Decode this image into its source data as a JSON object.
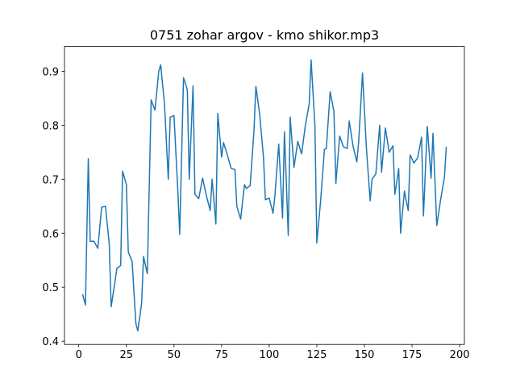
{
  "chart_data": {
    "type": "line",
    "title": "0751 zohar argov - kmo shikor.mp3",
    "x": [
      2,
      3.5,
      5,
      6,
      8,
      10,
      12,
      14,
      16,
      17,
      19,
      20,
      22,
      23,
      25,
      26,
      28,
      30,
      31,
      33,
      34,
      36,
      38,
      40,
      42,
      43,
      45,
      47,
      48,
      50,
      52,
      53,
      55,
      57,
      58,
      60,
      61,
      63,
      65,
      67,
      69,
      70,
      72,
      73,
      75,
      76,
      78,
      80,
      82,
      83,
      85,
      87,
      88,
      90,
      92,
      93,
      95,
      97,
      98,
      100,
      102,
      103,
      105,
      107,
      108,
      110,
      111,
      113,
      115,
      117,
      119,
      121,
      122,
      124,
      125,
      127,
      129,
      130,
      132,
      134,
      135,
      137,
      139,
      141,
      142,
      144,
      146,
      147,
      149,
      151,
      153,
      154,
      156,
      158,
      159,
      161,
      163,
      165,
      166,
      168,
      169,
      171,
      173,
      174,
      176,
      178,
      180,
      181,
      183,
      185,
      186,
      188,
      190,
      192,
      193
    ],
    "series": [
      {
        "color": "#1f77b4",
        "values": [
          0.487,
          0.467,
          0.738,
          0.585,
          0.585,
          0.572,
          0.648,
          0.65,
          0.58,
          0.464,
          0.51,
          0.535,
          0.54,
          0.715,
          0.69,
          0.565,
          0.548,
          0.432,
          0.419,
          0.47,
          0.557,
          0.525,
          0.847,
          0.828,
          0.9,
          0.912,
          0.84,
          0.7,
          0.815,
          0.818,
          0.68,
          0.598,
          0.888,
          0.866,
          0.7,
          0.873,
          0.672,
          0.664,
          0.702,
          0.67,
          0.642,
          0.7,
          0.617,
          0.822,
          0.741,
          0.768,
          0.745,
          0.72,
          0.718,
          0.65,
          0.626,
          0.69,
          0.683,
          0.688,
          0.79,
          0.872,
          0.82,
          0.74,
          0.662,
          0.665,
          0.637,
          0.67,
          0.765,
          0.628,
          0.788,
          0.596,
          0.815,
          0.722,
          0.77,
          0.747,
          0.8,
          0.84,
          0.921,
          0.8,
          0.582,
          0.66,
          0.755,
          0.757,
          0.862,
          0.825,
          0.692,
          0.78,
          0.76,
          0.757,
          0.808,
          0.762,
          0.732,
          0.77,
          0.897,
          0.76,
          0.66,
          0.7,
          0.71,
          0.8,
          0.713,
          0.795,
          0.75,
          0.762,
          0.672,
          0.72,
          0.6,
          0.678,
          0.642,
          0.745,
          0.73,
          0.74,
          0.778,
          0.632,
          0.798,
          0.702,
          0.785,
          0.614,
          0.662,
          0.703,
          0.76
        ]
      }
    ],
    "xlim": [
      -7.5,
      202.5
    ],
    "ylim": [
      0.394,
      0.946
    ],
    "xticks": [
      0,
      25,
      50,
      75,
      100,
      125,
      150,
      175,
      200
    ],
    "yticks": [
      0.4,
      0.5,
      0.6,
      0.7,
      0.8,
      0.9
    ]
  }
}
